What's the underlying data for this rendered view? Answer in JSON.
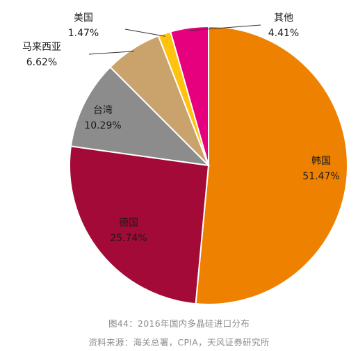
{
  "chart_data": {
    "type": "pie",
    "title": "",
    "slices": [
      {
        "label": "韩国",
        "value": 51.47,
        "value_text": "51.47%",
        "color": "#EE8100",
        "label_pos": "inside"
      },
      {
        "label": "德国",
        "value": 25.74,
        "value_text": "25.74%",
        "color": "#A30A37",
        "label_pos": "inside"
      },
      {
        "label": "台湾",
        "value": 10.29,
        "value_text": "10.29%",
        "color": "#8C8C8C",
        "label_pos": "inside"
      },
      {
        "label": "马来西亚",
        "value": 6.62,
        "value_text": "6.62%",
        "color": "#C9A36B",
        "label_pos": "outside"
      },
      {
        "label": "美国",
        "value": 1.47,
        "value_text": "1.47%",
        "color": "#FFC20E",
        "label_pos": "outside"
      },
      {
        "label": "其他",
        "value": 4.41,
        "value_text": "4.41%",
        "color": "#E6007E",
        "label_pos": "outside"
      }
    ],
    "start": "top",
    "direction": "clockwise"
  },
  "captions": {
    "figure": "图44：2016年国内多晶硅进口分布",
    "source": "资料来源：海关总署，CPIA，天风证券研究所"
  }
}
